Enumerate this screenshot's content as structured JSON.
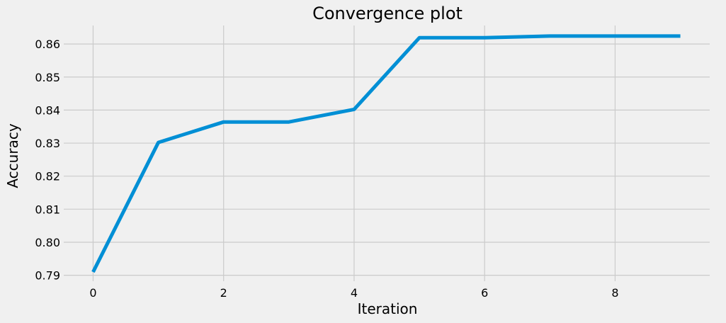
{
  "chart_data": {
    "type": "line",
    "title": "Convergence plot",
    "xlabel": "Iteration",
    "ylabel": "Accuracy",
    "x": [
      0,
      1,
      2,
      3,
      4,
      5,
      6,
      7,
      8,
      9
    ],
    "series": [
      {
        "values": [
          0.791,
          0.8302,
          0.8364,
          0.8364,
          0.8402,
          0.8619,
          0.8619,
          0.8624,
          0.8624,
          0.8624
        ]
      }
    ],
    "xlim": [
      -0.45,
      9.45
    ],
    "ylim": [
      0.7882,
      0.8656
    ],
    "xticks": [
      0,
      2,
      4,
      6,
      8
    ],
    "xtick_labels": [
      "0",
      "2",
      "4",
      "6",
      "8"
    ],
    "yticks": [
      0.79,
      0.8,
      0.81,
      0.82,
      0.83,
      0.84,
      0.85,
      0.86
    ],
    "ytick_labels": [
      "0.79",
      "0.80",
      "0.81",
      "0.82",
      "0.83",
      "0.84",
      "0.85",
      "0.86"
    ],
    "grid": true,
    "legend": "none",
    "colors": {
      "background": "#f0f0f0",
      "grid": "#cbcbcb",
      "line": "#008fd5"
    }
  }
}
